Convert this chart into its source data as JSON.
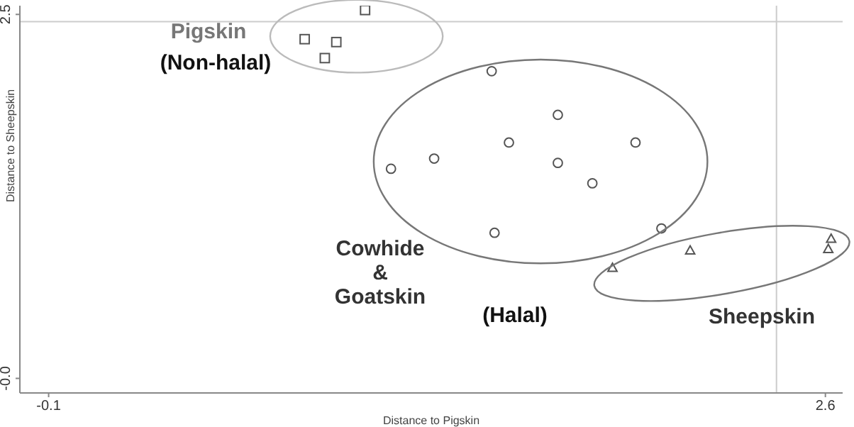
{
  "chart_data": {
    "type": "scatter",
    "xlabel": "Distance to Pigskin",
    "ylabel": "Distance to Sheepskin",
    "xlim": [
      -0.2,
      2.66
    ],
    "ylim": [
      -0.1,
      2.56
    ],
    "xticks": [
      -0.1,
      2.6
    ],
    "yticks": [
      {
        "value": 0,
        "label": "-0.0"
      },
      2.5
    ],
    "grid": false,
    "legend": false,
    "series": [
      {
        "color": "#555555",
        "marker": "square",
        "x": [
          1.0,
          0.79,
          0.9,
          0.86
        ],
        "values": [
          2.53,
          2.33,
          2.31,
          2.2
        ]
      },
      {
        "color": "#555555",
        "marker": "circle",
        "x": [
          1.44,
          1.67,
          1.5,
          1.94,
          1.24,
          1.09,
          1.67,
          1.79,
          1.45,
          2.03
        ],
        "values": [
          2.11,
          1.81,
          1.62,
          1.62,
          1.51,
          1.44,
          1.48,
          1.34,
          1.0,
          1.03
        ]
      },
      {
        "color": "#555555",
        "marker": "triangle",
        "x": [
          1.86,
          2.13,
          2.62,
          2.61
        ],
        "values": [
          0.76,
          0.88,
          0.96,
          0.89
        ]
      }
    ],
    "ref_lines": [
      {
        "axis": "y",
        "value": 2.45,
        "color": "#cccccc"
      },
      {
        "axis": "x",
        "value": 2.43,
        "color": "#cccccc"
      }
    ],
    "annotations": [
      "Pigskin",
      "(Non-halal)",
      "Cowhide & Goatskin",
      "(Halal)",
      "Sheepskin"
    ]
  }
}
